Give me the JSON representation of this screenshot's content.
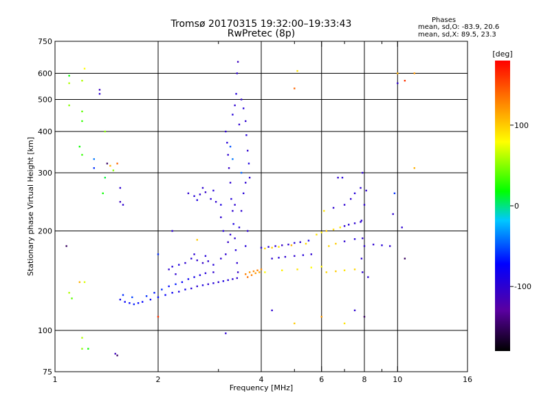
{
  "header": {
    "title_line1": "Tromsø 20170315 19:32:00–19:33:43",
    "title_line2": "RwPretec (8p)",
    "phases_title": "Phases",
    "phases_o": "mean, sd,O: -83.9, 20.6",
    "phases_x": "mean, sd,X:  89.5, 23.3"
  },
  "chart_data": {
    "type": "scatter",
    "xlabel": "Frequency [MHz]",
    "ylabel": "Stationary phase Virtual Height [km]",
    "x_scale": "log",
    "y_scale": "log",
    "xlim": [
      1,
      16
    ],
    "ylim": [
      75,
      750
    ],
    "x_ticks": [
      1,
      2,
      4,
      6,
      8,
      10,
      16
    ],
    "x_minor_ticks": [
      3,
      5,
      7,
      9
    ],
    "y_ticks": [
      75,
      100,
      200,
      300,
      400,
      500,
      600,
      750
    ],
    "grid": true,
    "colorbar": {
      "label": "[deg]",
      "range": [
        -180,
        180
      ],
      "ticks": [
        100,
        0,
        -100
      ],
      "colormap": [
        "#000000",
        "#5a00a0",
        "#0000ff",
        "#00c8ff",
        "#00ff00",
        "#ffff00",
        "#ff8000",
        "#ff0000"
      ]
    },
    "series": [
      {
        "points": [
          [
            1.55,
            124,
            -80
          ],
          [
            1.6,
            122,
            -75
          ],
          [
            1.65,
            121,
            -70
          ],
          [
            1.7,
            120,
            -65
          ],
          [
            1.75,
            121,
            -70
          ],
          [
            1.8,
            122,
            -72
          ],
          [
            1.9,
            124,
            -75
          ],
          [
            2.0,
            126,
            -70
          ],
          [
            2.1,
            128,
            -75
          ],
          [
            2.2,
            130,
            -80
          ],
          [
            2.3,
            131,
            -90
          ],
          [
            2.4,
            133,
            -85
          ],
          [
            2.5,
            134,
            -95
          ],
          [
            2.6,
            136,
            -100
          ],
          [
            2.7,
            137,
            -90
          ],
          [
            2.8,
            138,
            -100
          ],
          [
            2.9,
            139,
            -95
          ],
          [
            3.0,
            140,
            -100
          ],
          [
            3.1,
            141,
            -90
          ],
          [
            3.2,
            142,
            -95
          ],
          [
            3.3,
            143,
            -100
          ],
          [
            3.4,
            144,
            -100
          ],
          [
            1.58,
            128,
            -60
          ],
          [
            1.68,
            126,
            -55
          ],
          [
            1.85,
            127,
            -60
          ],
          [
            1.95,
            130,
            -65
          ],
          [
            2.05,
            133,
            -60
          ],
          [
            2.15,
            136,
            -70
          ],
          [
            2.25,
            138,
            -65
          ],
          [
            2.35,
            140,
            -75
          ],
          [
            2.45,
            143,
            -80
          ],
          [
            2.55,
            145,
            -85
          ],
          [
            2.65,
            147,
            -90
          ],
          [
            2.75,
            149,
            -95
          ],
          [
            2.9,
            150,
            -100
          ],
          [
            2.15,
            153,
            -100
          ],
          [
            2.2,
            156,
            -95
          ],
          [
            2.25,
            148,
            -100
          ],
          [
            2.4,
            160,
            -100
          ],
          [
            2.5,
            165,
            -95
          ],
          [
            2.6,
            163,
            -100
          ],
          [
            2.7,
            160,
            -105
          ],
          [
            2.8,
            162,
            -100
          ],
          [
            2.9,
            158,
            -95
          ],
          [
            2.3,
            158,
            -90
          ],
          [
            2.55,
            170,
            -100
          ],
          [
            2.75,
            168,
            -95
          ],
          [
            3.05,
            165,
            -100
          ],
          [
            2.45,
            260,
            -100
          ],
          [
            2.55,
            255,
            -95
          ],
          [
            2.65,
            258,
            -100
          ],
          [
            2.75,
            262,
            -105
          ],
          [
            2.85,
            250,
            -95
          ],
          [
            2.95,
            245,
            -100
          ],
          [
            3.05,
            240,
            -90
          ],
          [
            2.7,
            270,
            -100
          ],
          [
            2.9,
            265,
            -95
          ],
          [
            2.6,
            248,
            -90
          ]
        ]
      },
      {
        "points": [
          [
            3.15,
            400,
            -100
          ],
          [
            3.18,
            370,
            -95
          ],
          [
            3.2,
            340,
            -100
          ],
          [
            3.22,
            310,
            -105
          ],
          [
            3.25,
            280,
            -100
          ],
          [
            3.27,
            250,
            -95
          ],
          [
            3.3,
            230,
            -100
          ],
          [
            3.32,
            210,
            -90
          ],
          [
            3.35,
            190,
            -100
          ],
          [
            3.37,
            175,
            -95
          ],
          [
            3.4,
            160,
            -100
          ],
          [
            3.42,
            150,
            -105
          ],
          [
            3.45,
            420,
            -100
          ],
          [
            3.3,
            450,
            -95
          ],
          [
            3.35,
            480,
            -100
          ],
          [
            3.38,
            520,
            -95
          ],
          [
            3.4,
            600,
            -100
          ],
          [
            3.42,
            650,
            -110
          ],
          [
            3.5,
            500,
            -100
          ],
          [
            3.55,
            470,
            -95
          ],
          [
            3.6,
            430,
            -100
          ],
          [
            3.62,
            390,
            -95
          ],
          [
            3.65,
            350,
            -100
          ],
          [
            3.68,
            320,
            -90
          ],
          [
            3.7,
            290,
            -100
          ],
          [
            3.25,
            360,
            -50
          ],
          [
            3.3,
            330,
            -40
          ],
          [
            3.5,
            300,
            -45
          ],
          [
            3.6,
            280,
            -100
          ],
          [
            3.55,
            260,
            -95
          ],
          [
            3.5,
            230,
            -100
          ],
          [
            3.45,
            205,
            -95
          ],
          [
            3.25,
            195,
            -100
          ],
          [
            3.2,
            185,
            -105
          ],
          [
            3.15,
            170,
            -100
          ],
          [
            3.1,
            200,
            -95
          ],
          [
            3.05,
            220,
            -100
          ],
          [
            3.35,
            240,
            -100
          ],
          [
            3.6,
            180,
            -95
          ],
          [
            3.65,
            200,
            -100
          ]
        ]
      },
      {
        "points": [
          [
            3.6,
            148,
            130
          ],
          [
            3.7,
            150,
            120
          ],
          [
            3.8,
            151,
            125
          ],
          [
            3.9,
            152,
            130
          ],
          [
            4.0,
            153,
            125
          ],
          [
            3.65,
            145,
            135
          ],
          [
            3.75,
            147,
            130
          ],
          [
            3.85,
            149,
            120
          ],
          [
            3.95,
            150,
            115
          ]
        ]
      },
      {
        "points": [
          [
            4.0,
            178,
            -100
          ],
          [
            4.2,
            179,
            -95
          ],
          [
            4.4,
            180,
            -100
          ],
          [
            4.6,
            181,
            -105
          ],
          [
            4.8,
            182,
            -100
          ],
          [
            5.0,
            184,
            -95
          ],
          [
            5.2,
            185,
            -100
          ],
          [
            5.5,
            187,
            -90
          ],
          [
            4.3,
            165,
            -100
          ],
          [
            4.5,
            166,
            -95
          ],
          [
            4.7,
            167,
            -100
          ],
          [
            5.0,
            168,
            -100
          ],
          [
            5.3,
            169,
            -95
          ],
          [
            5.6,
            170,
            -100
          ],
          [
            4.1,
            177,
            95
          ],
          [
            4.3,
            178,
            100
          ],
          [
            4.5,
            179,
            90
          ],
          [
            4.9,
            181,
            110
          ],
          [
            5.4,
            183,
            95
          ],
          [
            4.1,
            150,
            80
          ],
          [
            4.6,
            152,
            85
          ],
          [
            5.1,
            153,
            90
          ],
          [
            5.6,
            155,
            80
          ],
          [
            6.0,
            156,
            85
          ]
        ]
      },
      {
        "points": [
          [
            5.8,
            195,
            90
          ],
          [
            6.0,
            198,
            85
          ],
          [
            6.2,
            200,
            100
          ],
          [
            6.5,
            202,
            95
          ],
          [
            6.8,
            205,
            90
          ],
          [
            7.0,
            207,
            -100
          ],
          [
            7.2,
            209,
            -95
          ],
          [
            7.5,
            211,
            -100
          ],
          [
            7.8,
            213,
            -100
          ],
          [
            6.3,
            180,
            95
          ],
          [
            6.6,
            183,
            100
          ],
          [
            7.0,
            186,
            -100
          ],
          [
            7.5,
            189,
            -95
          ],
          [
            8.0,
            180,
            -100
          ],
          [
            8.5,
            182,
            -100
          ],
          [
            9.0,
            181,
            -95
          ],
          [
            9.5,
            180,
            -100
          ],
          [
            6.1,
            230,
            90
          ],
          [
            6.5,
            235,
            -100
          ],
          [
            7.0,
            240,
            -100
          ],
          [
            7.3,
            250,
            -100
          ],
          [
            7.5,
            260,
            -95
          ],
          [
            7.8,
            270,
            -100
          ],
          [
            7.9,
            300,
            -100
          ],
          [
            6.7,
            290,
            -100
          ],
          [
            6.9,
            290,
            -95
          ],
          [
            6.2,
            150,
            95
          ],
          [
            6.6,
            151,
            100
          ],
          [
            7.0,
            152,
            90
          ],
          [
            7.5,
            153,
            95
          ],
          [
            8.2,
            145,
            -100
          ],
          [
            7.9,
            150,
            -100
          ],
          [
            7.85,
            165,
            -100
          ],
          [
            7.9,
            190,
            -100
          ],
          [
            7.85,
            215,
            -100
          ],
          [
            8.0,
            240,
            -100
          ],
          [
            8.1,
            265,
            -100
          ]
        ]
      },
      {
        "points": [
          [
            1.1,
            590,
            20
          ],
          [
            1.1,
            560,
            60
          ],
          [
            1.1,
            480,
            50
          ],
          [
            1.22,
            620,
            80
          ],
          [
            1.2,
            570,
            60
          ],
          [
            1.2,
            460,
            40
          ],
          [
            1.2,
            430,
            30
          ],
          [
            1.18,
            360,
            20
          ],
          [
            1.2,
            340,
            30
          ],
          [
            1.3,
            330,
            -40
          ],
          [
            1.3,
            310,
            -60
          ],
          [
            1.4,
            400,
            50
          ],
          [
            1.4,
            290,
            10
          ],
          [
            1.38,
            260,
            20
          ],
          [
            1.35,
            520,
            -100
          ],
          [
            1.35,
            535,
            -110
          ],
          [
            1.42,
            320,
            -150
          ],
          [
            1.45,
            315,
            110
          ],
          [
            1.48,
            305,
            50
          ],
          [
            1.52,
            320,
            140
          ],
          [
            1.55,
            270,
            -100
          ],
          [
            1.55,
            245,
            -110
          ],
          [
            1.58,
            240,
            -100
          ],
          [
            1.08,
            180,
            -150
          ],
          [
            1.1,
            130,
            60
          ],
          [
            1.12,
            125,
            40
          ],
          [
            1.18,
            140,
            110
          ],
          [
            1.22,
            140,
            70
          ],
          [
            1.2,
            95,
            60
          ],
          [
            1.2,
            88,
            50
          ],
          [
            1.25,
            88,
            20
          ],
          [
            1.5,
            85,
            -110
          ],
          [
            1.52,
            84,
            -150
          ],
          [
            2.0,
            110,
            160
          ],
          [
            3.15,
            98,
            -100
          ],
          [
            10.0,
            600,
            110
          ],
          [
            10.0,
            560,
            -100
          ],
          [
            10.5,
            570,
            160
          ],
          [
            11.2,
            600,
            120
          ],
          [
            11.2,
            310,
            110
          ],
          [
            10.3,
            205,
            -100
          ],
          [
            10.5,
            165,
            -150
          ],
          [
            9.7,
            225,
            -100
          ],
          [
            9.8,
            260,
            -60
          ],
          [
            5.0,
            540,
            140
          ],
          [
            5.1,
            610,
            90
          ],
          [
            5.0,
            105,
            100
          ],
          [
            4.3,
            115,
            -100
          ],
          [
            6.0,
            110,
            120
          ],
          [
            7.0,
            105,
            90
          ],
          [
            7.5,
            115,
            -100
          ],
          [
            8.0,
            110,
            -150
          ],
          [
            2.6,
            188,
            100
          ],
          [
            2.2,
            200,
            -100
          ],
          [
            2.0,
            170,
            -60
          ]
        ]
      }
    ]
  }
}
